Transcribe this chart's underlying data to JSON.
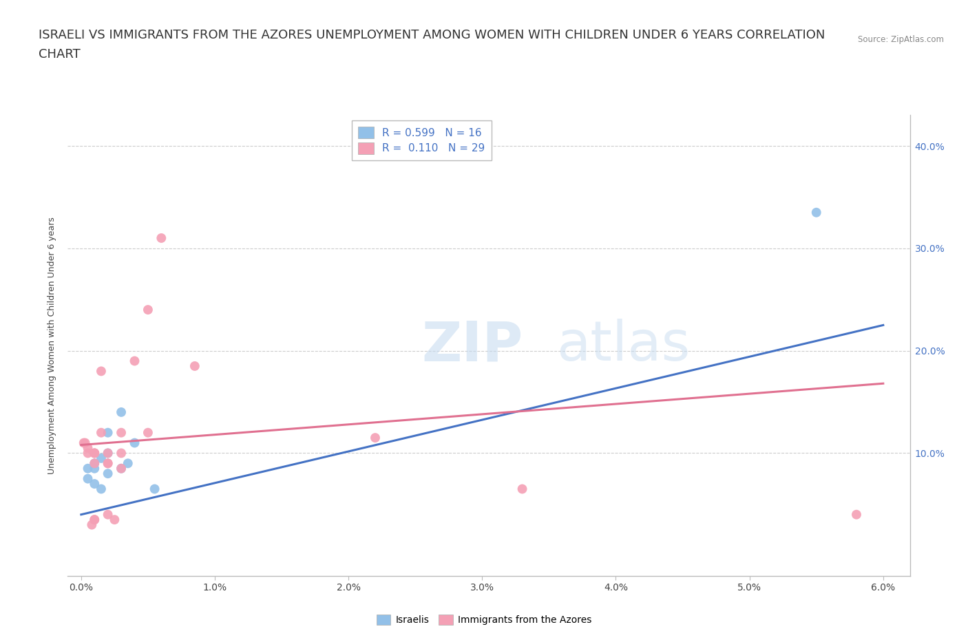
{
  "title_line1": "ISRAELI VS IMMIGRANTS FROM THE AZORES UNEMPLOYMENT AMONG WOMEN WITH CHILDREN UNDER 6 YEARS CORRELATION",
  "title_line2": "CHART",
  "source": "Source: ZipAtlas.com",
  "xlabel_ticks": [
    "0.0%",
    "1.0%",
    "2.0%",
    "3.0%",
    "4.0%",
    "5.0%",
    "6.0%"
  ],
  "ylabel_ticks": [
    "10.0%",
    "20.0%",
    "30.0%",
    "40.0%"
  ],
  "ylabel_label": "Unemployment Among Women with Children Under 6 years",
  "xlim": [
    -0.001,
    0.062
  ],
  "ylim": [
    -0.02,
    0.43
  ],
  "legend_r_blue": "R = 0.599",
  "legend_n_blue": "N = 16",
  "legend_r_pink": "R =  0.110",
  "legend_n_pink": "N = 29",
  "legend_label_blue": "Israelis",
  "legend_label_pink": "Immigrants from the Azores",
  "color_blue": "#92C0E8",
  "color_pink": "#F4A0B5",
  "color_line_blue": "#4472C4",
  "color_line_pink": "#E07090",
  "israelis_x": [
    0.0005,
    0.0005,
    0.001,
    0.001,
    0.001,
    0.0015,
    0.0015,
    0.002,
    0.002,
    0.002,
    0.003,
    0.003,
    0.0035,
    0.004,
    0.0055,
    0.055
  ],
  "israelis_y": [
    0.075,
    0.085,
    0.07,
    0.085,
    0.09,
    0.065,
    0.095,
    0.08,
    0.1,
    0.12,
    0.085,
    0.14,
    0.09,
    0.11,
    0.065,
    0.335
  ],
  "azores_x": [
    0.0002,
    0.0003,
    0.0005,
    0.0005,
    0.0008,
    0.001,
    0.001,
    0.001,
    0.001,
    0.001,
    0.001,
    0.0015,
    0.0015,
    0.002,
    0.002,
    0.002,
    0.002,
    0.0025,
    0.003,
    0.003,
    0.003,
    0.004,
    0.005,
    0.005,
    0.006,
    0.0085,
    0.022,
    0.033,
    0.058
  ],
  "azores_y": [
    0.11,
    0.11,
    0.105,
    0.1,
    0.03,
    0.1,
    0.1,
    0.1,
    0.09,
    0.035,
    0.035,
    0.12,
    0.18,
    0.1,
    0.09,
    0.09,
    0.04,
    0.035,
    0.12,
    0.1,
    0.085,
    0.19,
    0.12,
    0.24,
    0.31,
    0.185,
    0.115,
    0.065,
    0.04
  ],
  "blue_trendline_x": [
    0.0,
    0.06
  ],
  "blue_trendline_y": [
    0.04,
    0.225
  ],
  "pink_trendline_x": [
    0.0,
    0.06
  ],
  "pink_trendline_y": [
    0.108,
    0.168
  ],
  "grid_color": "#CCCCCC",
  "bg_color": "#FFFFFF",
  "title_fontsize": 13,
  "axis_fontsize": 10,
  "scatter_size": 100
}
